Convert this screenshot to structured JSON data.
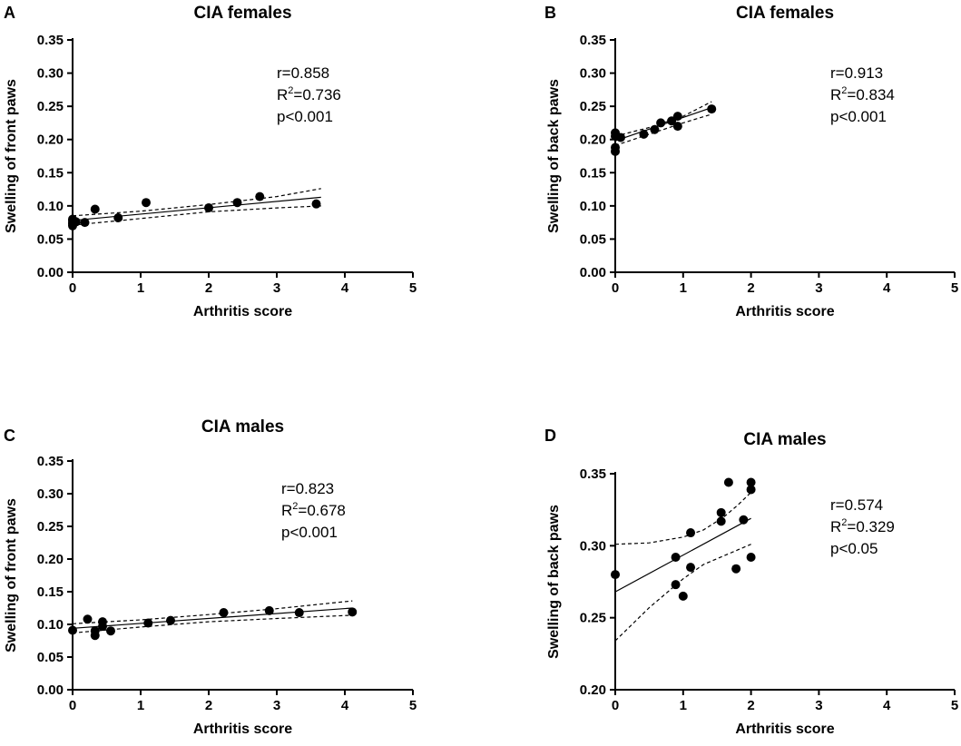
{
  "chart_data": [
    {
      "panel": "A",
      "type": "scatter",
      "title": "CIA females",
      "xlabel": "Arthritis score",
      "ylabel": "Swelling of front paws",
      "xlim": [
        0,
        5
      ],
      "ylim": [
        0,
        0.35
      ],
      "xticks": [
        0,
        1,
        2,
        3,
        4,
        5
      ],
      "yticks": [
        0.0,
        0.05,
        0.1,
        0.15,
        0.2,
        0.25,
        0.3,
        0.35
      ],
      "ytick_labels": [
        "0.00",
        "0.05",
        "0.10",
        "0.15",
        "0.20",
        "0.25",
        "0.30",
        "0.35"
      ],
      "points": [
        {
          "x": 0,
          "y": 0.07
        },
        {
          "x": 0,
          "y": 0.073
        },
        {
          "x": 0,
          "y": 0.075
        },
        {
          "x": 0,
          "y": 0.078
        },
        {
          "x": 0,
          "y": 0.08
        },
        {
          "x": 0.05,
          "y": 0.076
        },
        {
          "x": 0.18,
          "y": 0.075
        },
        {
          "x": 0.33,
          "y": 0.095
        },
        {
          "x": 0.67,
          "y": 0.082
        },
        {
          "x": 1.08,
          "y": 0.105
        },
        {
          "x": 2.0,
          "y": 0.097
        },
        {
          "x": 2.42,
          "y": 0.105
        },
        {
          "x": 2.75,
          "y": 0.114
        },
        {
          "x": 3.58,
          "y": 0.103
        }
      ],
      "fit": {
        "x0": 0,
        "y0": 0.078,
        "x1": 3.65,
        "y1": 0.113
      },
      "ci_upper": [
        [
          0,
          0.085
        ],
        [
          1,
          0.092
        ],
        [
          2,
          0.102
        ],
        [
          3,
          0.114
        ],
        [
          3.65,
          0.126
        ]
      ],
      "ci_lower": [
        [
          0,
          0.071
        ],
        [
          1,
          0.081
        ],
        [
          2,
          0.091
        ],
        [
          3,
          0.097
        ],
        [
          3.65,
          0.1
        ]
      ],
      "stats": {
        "r": "r=0.858",
        "r2_prefix": "R",
        "r2_sup": "2",
        "r2_value": "=0.736",
        "p": "p<0.001"
      }
    },
    {
      "panel": "B",
      "type": "scatter",
      "title": "CIA females",
      "xlabel": "Arthritis score",
      "ylabel": "Swelling of back paws",
      "xlim": [
        0,
        5
      ],
      "ylim": [
        0,
        0.35
      ],
      "xticks": [
        0,
        1,
        2,
        3,
        4,
        5
      ],
      "yticks": [
        0.0,
        0.05,
        0.1,
        0.15,
        0.2,
        0.25,
        0.3,
        0.35
      ],
      "ytick_labels": [
        "0.00",
        "0.05",
        "0.10",
        "0.15",
        "0.20",
        "0.25",
        "0.30",
        "0.35"
      ],
      "points": [
        {
          "x": 0,
          "y": 0.182
        },
        {
          "x": 0,
          "y": 0.188
        },
        {
          "x": 0,
          "y": 0.205
        },
        {
          "x": 0,
          "y": 0.21
        },
        {
          "x": 0.08,
          "y": 0.203
        },
        {
          "x": 0.42,
          "y": 0.208
        },
        {
          "x": 0.58,
          "y": 0.215
        },
        {
          "x": 0.67,
          "y": 0.225
        },
        {
          "x": 0.83,
          "y": 0.228
        },
        {
          "x": 0.92,
          "y": 0.22
        },
        {
          "x": 0.92,
          "y": 0.235
        },
        {
          "x": 1.42,
          "y": 0.246
        }
      ],
      "fit": {
        "x0": 0,
        "y0": 0.198,
        "x1": 1.42,
        "y1": 0.248
      },
      "ci_upper": [
        [
          0,
          0.205
        ],
        [
          0.5,
          0.218
        ],
        [
          1,
          0.235
        ],
        [
          1.42,
          0.257
        ]
      ],
      "ci_lower": [
        [
          0,
          0.191
        ],
        [
          0.5,
          0.208
        ],
        [
          1,
          0.225
        ],
        [
          1.42,
          0.238
        ]
      ],
      "stats": {
        "r": "r=0.913",
        "r2_prefix": "R",
        "r2_sup": "2",
        "r2_value": "=0.834",
        "p": "p<0.001"
      }
    },
    {
      "panel": "C",
      "type": "scatter",
      "title": "CIA males",
      "xlabel": "Arthritis score",
      "ylabel": "Swelling of front paws",
      "xlim": [
        0,
        5
      ],
      "ylim": [
        0,
        0.35
      ],
      "xticks": [
        0,
        1,
        2,
        3,
        4,
        5
      ],
      "yticks": [
        0.0,
        0.05,
        0.1,
        0.15,
        0.2,
        0.25,
        0.3,
        0.35
      ],
      "ytick_labels": [
        "0.00",
        "0.05",
        "0.10",
        "0.15",
        "0.20",
        "0.25",
        "0.30",
        "0.35"
      ],
      "points": [
        {
          "x": 0,
          "y": 0.091
        },
        {
          "x": 0.22,
          "y": 0.108
        },
        {
          "x": 0.33,
          "y": 0.083
        },
        {
          "x": 0.33,
          "y": 0.09
        },
        {
          "x": 0.44,
          "y": 0.104
        },
        {
          "x": 0.44,
          "y": 0.097
        },
        {
          "x": 0.56,
          "y": 0.09
        },
        {
          "x": 1.11,
          "y": 0.102
        },
        {
          "x": 1.44,
          "y": 0.106
        },
        {
          "x": 2.22,
          "y": 0.118
        },
        {
          "x": 2.89,
          "y": 0.121
        },
        {
          "x": 3.33,
          "y": 0.118
        },
        {
          "x": 4.11,
          "y": 0.119
        }
      ],
      "fit": {
        "x0": 0,
        "y0": 0.094,
        "x1": 4.11,
        "y1": 0.125
      },
      "ci_upper": [
        [
          0,
          0.101
        ],
        [
          1,
          0.107
        ],
        [
          2,
          0.115
        ],
        [
          3,
          0.124
        ],
        [
          4.11,
          0.136
        ]
      ],
      "ci_lower": [
        [
          0,
          0.087
        ],
        [
          1,
          0.096
        ],
        [
          2,
          0.104
        ],
        [
          3,
          0.109
        ],
        [
          4.11,
          0.114
        ]
      ],
      "stats": {
        "r": "r=0.823",
        "r2_prefix": "R",
        "r2_sup": "2",
        "r2_value": "=0.678",
        "p": "p<0.001"
      }
    },
    {
      "panel": "D",
      "type": "scatter",
      "title": "CIA males",
      "xlabel": "Arthritis score",
      "ylabel": "Swelling of back paws",
      "xlim": [
        0,
        5
      ],
      "ylim": [
        0.2,
        0.35
      ],
      "xticks": [
        0,
        1,
        2,
        3,
        4,
        5
      ],
      "yticks": [
        0.2,
        0.25,
        0.3,
        0.35
      ],
      "ytick_labels": [
        "0.20",
        "0.25",
        "0.30",
        "0.35"
      ],
      "points": [
        {
          "x": 0,
          "y": 0.28
        },
        {
          "x": 0.89,
          "y": 0.292
        },
        {
          "x": 0.89,
          "y": 0.273
        },
        {
          "x": 1.0,
          "y": 0.265
        },
        {
          "x": 1.11,
          "y": 0.309
        },
        {
          "x": 1.11,
          "y": 0.285
        },
        {
          "x": 1.56,
          "y": 0.323
        },
        {
          "x": 1.56,
          "y": 0.317
        },
        {
          "x": 1.67,
          "y": 0.344
        },
        {
          "x": 1.78,
          "y": 0.284
        },
        {
          "x": 1.89,
          "y": 0.318
        },
        {
          "x": 2.0,
          "y": 0.344
        },
        {
          "x": 2.0,
          "y": 0.339
        },
        {
          "x": 2.0,
          "y": 0.292
        }
      ],
      "fit": {
        "x0": 0,
        "y0": 0.268,
        "x1": 2.0,
        "y1": 0.319
      },
      "ci_upper": [
        [
          0,
          0.301
        ],
        [
          0.5,
          0.302
        ],
        [
          1,
          0.306
        ],
        [
          1.3,
          0.311
        ],
        [
          1.6,
          0.32
        ],
        [
          1.8,
          0.328
        ],
        [
          2.0,
          0.337
        ]
      ],
      "ci_lower": [
        [
          0,
          0.234
        ],
        [
          0.5,
          0.257
        ],
        [
          1,
          0.277
        ],
        [
          1.3,
          0.287
        ],
        [
          1.6,
          0.293
        ],
        [
          1.8,
          0.297
        ],
        [
          2.0,
          0.301
        ]
      ],
      "stats": {
        "r": "r=0.574",
        "r2_prefix": "R",
        "r2_sup": "2",
        "r2_value": "=0.329",
        "p": "p<0.05"
      }
    }
  ]
}
